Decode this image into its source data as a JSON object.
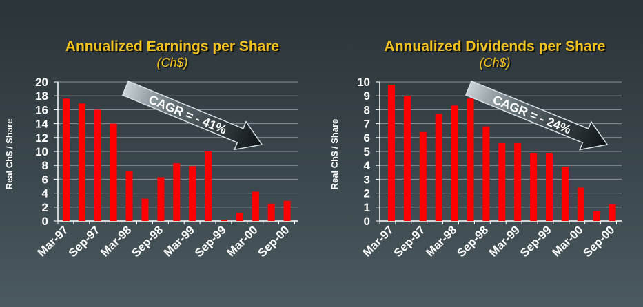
{
  "charts": [
    {
      "title": "Annualized Earnings per Share",
      "subtitle": "(Ch$)",
      "annotation": "CAGR = - 41%"
    },
    {
      "title": "Annualized Dividends per Share",
      "subtitle": "(Ch$)",
      "annotation": "CAGR = - 24%"
    }
  ],
  "colors": {
    "bar": "#ff0000",
    "title": "#f2c21f",
    "axis_text": "#ffffff",
    "grid": "#8c9599"
  },
  "chart_data": [
    {
      "type": "bar",
      "title": "Annualized Earnings per Share",
      "subtitle": "(Ch$)",
      "ylabel": "Real Ch$ / Share",
      "xlabel": "",
      "ylim": [
        0,
        20
      ],
      "yticks": [
        0,
        2,
        4,
        6,
        8,
        10,
        12,
        14,
        16,
        18,
        20
      ],
      "xtick_labels": [
        "Mar-97",
        "Sep-97",
        "Mar-98",
        "Sep-98",
        "Mar-99",
        "Sep-99",
        "Mar-00",
        "Sep-00"
      ],
      "values": [
        17.6,
        16.9,
        16.0,
        14.0,
        7.2,
        3.2,
        6.3,
        8.3,
        7.9,
        10.0,
        0.2,
        1.2,
        4.2,
        2.5,
        2.9
      ],
      "grid": true,
      "annotation": "CAGR = - 41%"
    },
    {
      "type": "bar",
      "title": "Annualized Dividends per Share",
      "subtitle": "(Ch$)",
      "ylabel": "Real Ch$ / Share",
      "xlabel": "",
      "ylim": [
        0,
        10
      ],
      "yticks": [
        0,
        1,
        2,
        3,
        4,
        5,
        6,
        7,
        8,
        9,
        10
      ],
      "xtick_labels": [
        "Mar-97",
        "Sep-97",
        "Mar-98",
        "Sep-98",
        "Mar-99",
        "Sep-99",
        "Mar-00",
        "Sep-00"
      ],
      "values": [
        9.8,
        9.0,
        6.4,
        7.7,
        8.3,
        8.8,
        6.8,
        5.6,
        5.6,
        4.9,
        4.9,
        3.9,
        2.4,
        0.7,
        1.2
      ],
      "grid": true,
      "annotation": "CAGR = - 24%"
    }
  ]
}
